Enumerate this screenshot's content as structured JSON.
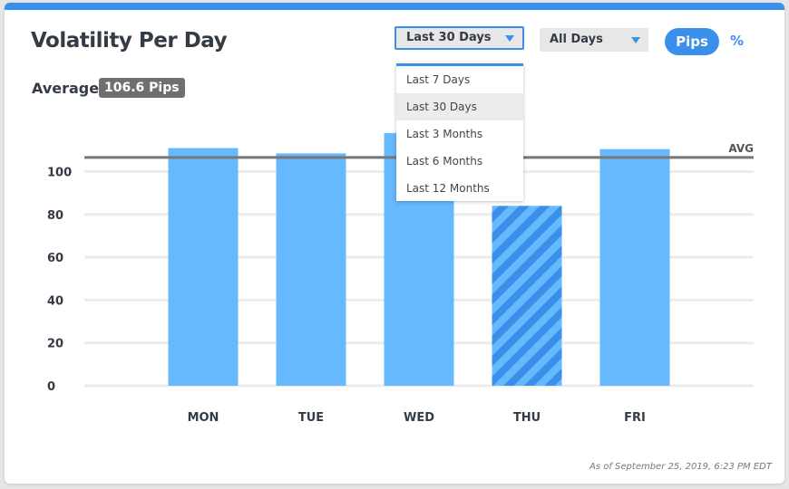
{
  "title": "Volatility Per Day",
  "average": {
    "label": "Average",
    "value": "106.6 Pips"
  },
  "controls": {
    "period_select": "Last 30 Days",
    "days_select": "All Days",
    "unit_pips": "Pips",
    "unit_percent": "%"
  },
  "dropdown": {
    "options": [
      "Last 7 Days",
      "Last 30 Days",
      "Last 3 Months",
      "Last 6 Months",
      "Last 12 Months"
    ],
    "selected_index": 1
  },
  "chart_data": {
    "type": "bar",
    "categories": [
      "MON",
      "TUE",
      "WED",
      "THU",
      "FRI"
    ],
    "values": [
      111,
      108.5,
      118,
      84,
      110.5
    ],
    "highlight": {
      "index": 3,
      "style": "hatched"
    },
    "ylim": [
      0,
      120
    ],
    "yticks": [
      0,
      20,
      40,
      60,
      80,
      100
    ],
    "reference_line": {
      "label": "AVG",
      "value": 106.6
    },
    "bar_color": "#66b9fc",
    "hatch_color": "#3a8fea",
    "grid": true
  },
  "footnote": "As of September 25, 2019, 6:23 PM EDT",
  "colors": {
    "accent": "#3a8fea",
    "badge": "#6f6f6f"
  }
}
